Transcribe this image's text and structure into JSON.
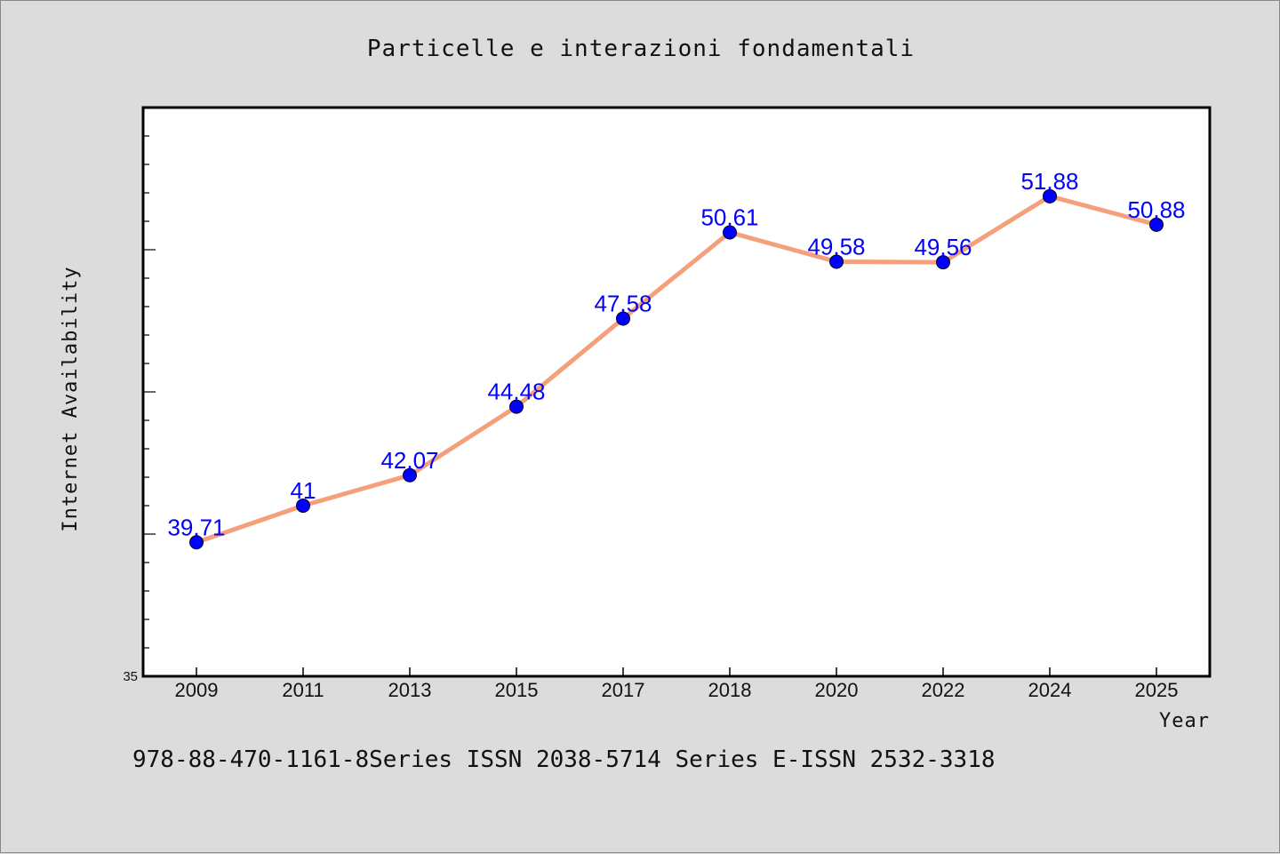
{
  "chart_data": {
    "type": "line",
    "title": "Particelle e interazioni fondamentali",
    "xlabel": "Year",
    "ylabel": "Internet Availability",
    "categories": [
      "2009",
      "2011",
      "2013",
      "2015",
      "2017",
      "2018",
      "2020",
      "2022",
      "2024",
      "2025"
    ],
    "series": [
      {
        "values": [
          39.71,
          41,
          42.07,
          44.48,
          47.58,
          50.61,
          49.58,
          49.56,
          51.88,
          50.88
        ],
        "data_labels": [
          "39.71",
          "41",
          "42.07",
          "44.48",
          "47.58",
          "50.61",
          "49.58",
          "49.56",
          "51.88",
          "50.88"
        ],
        "line_color": "#f4a07a",
        "marker_color": "#0000ff"
      }
    ],
    "ylim": [
      35,
      55
    ],
    "y_tick_labels": [
      "35"
    ],
    "grid": false,
    "legend": "none"
  },
  "footer": {
    "text": "978-88-470-1161-8Series ISSN 2038-5714 Series E-ISSN 2532-3318"
  },
  "colors": {
    "background": "#dcdcdc",
    "plot_background": "#ffffff",
    "axis": "#000000"
  }
}
